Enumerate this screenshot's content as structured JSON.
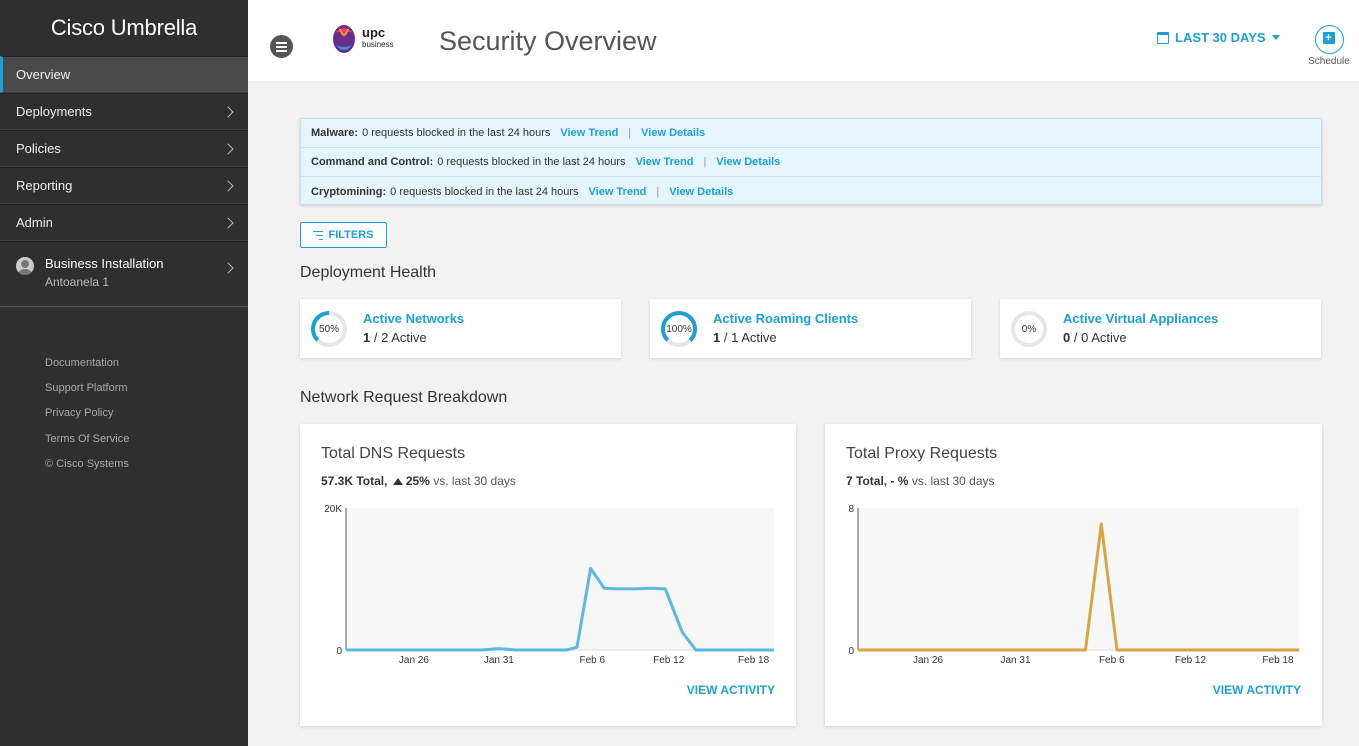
{
  "sidebar": {
    "brand": "Cisco Umbrella",
    "items": [
      {
        "label": "Overview"
      },
      {
        "label": "Deployments"
      },
      {
        "label": "Policies"
      },
      {
        "label": "Reporting"
      },
      {
        "label": "Admin"
      }
    ],
    "account": {
      "name": "Business Installation",
      "org": "Antoanela 1"
    },
    "footer_links": [
      "Documentation",
      "Support Platform",
      "Privacy Policy",
      "Terms Of Service",
      "© Cisco Systems"
    ]
  },
  "header": {
    "logo_text": "upc",
    "logo_subtext": "business",
    "title": "Security Overview",
    "date_range": "LAST 30 DAYS",
    "schedule_label": "Schedule"
  },
  "alerts": [
    {
      "label": "Malware:",
      "text": "0 requests blocked in the last 24 hours",
      "trend": "View Trend",
      "details": "View Details"
    },
    {
      "label": "Command and Control:",
      "text": "0 requests blocked in the last 24 hours",
      "trend": "View Trend",
      "details": "View Details"
    },
    {
      "label": "Cryptomining:",
      "text": "0 requests blocked in the last 24 hours",
      "trend": "View Trend",
      "details": "View Details"
    }
  ],
  "filters_label": "FILTERS",
  "deployment_health": {
    "title": "Deployment Health",
    "cards": [
      {
        "title": "Active Networks",
        "active": "1",
        "total": "/ 2 Active",
        "percent_label": "50%",
        "percent": 50
      },
      {
        "title": "Active Roaming Clients",
        "active": "1",
        "total": "/ 1 Active",
        "percent_label": "100%",
        "percent": 100
      },
      {
        "title": "Active Virtual Appliances",
        "active": "0",
        "total": "/ 0 Active",
        "percent_label": "0%",
        "percent": 0
      }
    ]
  },
  "network_breakdown": {
    "title": "Network Request Breakdown",
    "view_activity": "VIEW ACTIVITY"
  },
  "colors": {
    "accent": "#1ba0d7",
    "dns_line": "#5bb8e3",
    "proxy_line": "#dba443",
    "sidebar": "#2f2f2f"
  },
  "chart_data": [
    {
      "type": "line",
      "title": "Total DNS Requests",
      "summary_total": "57.3K Total,",
      "summary_change": "25%",
      "summary_suffix": "vs. last 30 days",
      "x_ticks": [
        "Jan 26",
        "Jan 31",
        "Feb 6",
        "Feb 12",
        "Feb 18"
      ],
      "x_tick_days": [
        5,
        10,
        15.5,
        20,
        25
      ],
      "y_ticks": [
        "20K",
        "0"
      ],
      "ylim": [
        0,
        20000
      ],
      "xlim": [
        1,
        26.2
      ],
      "series": [
        {
          "x": [
            1,
            2,
            3,
            4,
            5,
            6,
            7,
            8,
            9,
            10,
            11,
            12,
            13,
            14,
            14.6,
            15.4,
            16.2,
            17,
            18,
            19,
            19.8,
            20.8,
            21.6,
            23,
            24,
            25,
            26.2
          ],
          "y": [
            0,
            0,
            0,
            0,
            0,
            0,
            0,
            0,
            0,
            200,
            0,
            0,
            0,
            0,
            400,
            11500,
            8700,
            8600,
            8600,
            8700,
            8600,
            2500,
            0,
            0,
            0,
            0,
            0
          ]
        }
      ]
    },
    {
      "type": "line",
      "title": "Total Proxy Requests",
      "summary_total": "7 Total,",
      "summary_change": "- %",
      "summary_suffix": "vs. last 30 days",
      "x_ticks": [
        "Jan 26",
        "Jan 31",
        "Feb 6",
        "Feb 12",
        "Feb 18"
      ],
      "x_tick_days": [
        5,
        10,
        15.5,
        20,
        25
      ],
      "y_ticks": [
        "8",
        "0"
      ],
      "ylim": [
        0,
        8
      ],
      "xlim": [
        1,
        26.2
      ],
      "series": [
        {
          "x": [
            1,
            14,
            14.9,
            15.8,
            26.2
          ],
          "y": [
            0,
            0,
            7.1,
            0,
            0
          ]
        }
      ]
    }
  ]
}
